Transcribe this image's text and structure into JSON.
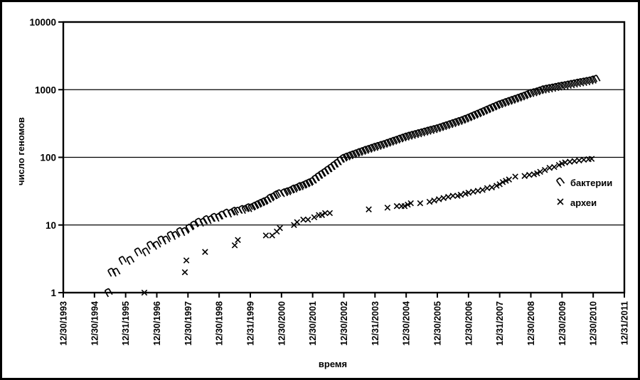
{
  "chart_data": {
    "type": "scatter",
    "title": "",
    "xlabel": "время",
    "ylabel": "число геномов",
    "y_scale": "log",
    "ylim": [
      1,
      10000
    ],
    "y_ticks": [
      1,
      10,
      100,
      1000,
      10000
    ],
    "grid": "horizontal",
    "legend_position": "inside-right",
    "x_tick_labels": [
      "12/30/1993",
      "12/30/1994",
      "12/31/1995",
      "12/30/1996",
      "12/30/1997",
      "12/30/1998",
      "12/31/1999",
      "12/30/2000",
      "12/30/2001",
      "12/30/2002",
      "12/31/2003",
      "12/30/2004",
      "12/30/2005",
      "12/30/2006",
      "12/31/2007",
      "12/30/2008",
      "12/30/2009",
      "12/30/2010",
      "12/31/2011"
    ],
    "series": [
      {
        "id": "bacteria",
        "name": "бактерии",
        "marker": "arch",
        "points": [
          [
            1995.45,
            1
          ],
          [
            1995.55,
            2
          ],
          [
            1995.7,
            2
          ],
          [
            1995.9,
            3
          ],
          [
            1996.15,
            3
          ],
          [
            1996.4,
            4
          ],
          [
            1996.65,
            4
          ],
          [
            1996.8,
            5
          ],
          [
            1997.0,
            5
          ],
          [
            1997.15,
            6
          ],
          [
            1997.3,
            6
          ],
          [
            1997.45,
            7
          ],
          [
            1997.6,
            7
          ],
          [
            1997.75,
            8
          ],
          [
            1997.9,
            8
          ],
          [
            1998.05,
            9
          ],
          [
            1998.2,
            10
          ],
          [
            1998.35,
            11
          ],
          [
            1998.5,
            11
          ],
          [
            1998.6,
            12
          ],
          [
            1998.75,
            12
          ],
          [
            1998.85,
            13
          ],
          [
            1999.0,
            13
          ],
          [
            1999.1,
            14
          ],
          [
            1999.25,
            15
          ],
          [
            1999.4,
            15
          ],
          [
            1999.5,
            16
          ],
          [
            1999.6,
            16
          ],
          [
            1999.75,
            17
          ],
          [
            1999.85,
            17
          ],
          [
            1999.95,
            18
          ],
          [
            2000.05,
            18
          ],
          [
            2000.15,
            19
          ],
          [
            2000.25,
            20
          ],
          [
            2000.35,
            21
          ],
          [
            2000.45,
            22
          ],
          [
            2000.55,
            23
          ],
          [
            2000.65,
            25
          ],
          [
            2000.75,
            26
          ],
          [
            2000.85,
            28
          ],
          [
            2000.93,
            29
          ],
          [
            2001.1,
            30
          ],
          [
            2001.2,
            31
          ],
          [
            2001.3,
            32
          ],
          [
            2001.4,
            34
          ],
          [
            2001.5,
            35
          ],
          [
            2001.6,
            37
          ],
          [
            2001.7,
            38
          ],
          [
            2001.8,
            40
          ],
          [
            2001.9,
            42
          ],
          [
            2002.0,
            44
          ],
          [
            2002.1,
            48
          ],
          [
            2002.2,
            52
          ],
          [
            2002.3,
            56
          ],
          [
            2002.4,
            60
          ],
          [
            2002.5,
            65
          ],
          [
            2002.6,
            70
          ],
          [
            2002.7,
            76
          ],
          [
            2002.8,
            82
          ],
          [
            2002.9,
            90
          ],
          [
            2003.0,
            97
          ],
          [
            2003.1,
            101
          ],
          [
            2003.2,
            105
          ],
          [
            2003.3,
            109
          ],
          [
            2003.4,
            113
          ],
          [
            2003.5,
            118
          ],
          [
            2003.6,
            122
          ],
          [
            2003.7,
            127
          ],
          [
            2003.8,
            131
          ],
          [
            2003.9,
            136
          ],
          [
            2004.0,
            141
          ],
          [
            2004.1,
            145
          ],
          [
            2004.2,
            150
          ],
          [
            2004.3,
            155
          ],
          [
            2004.4,
            161
          ],
          [
            2004.5,
            167
          ],
          [
            2004.6,
            173
          ],
          [
            2004.7,
            179
          ],
          [
            2004.8,
            186
          ],
          [
            2004.9,
            193
          ],
          [
            2005.0,
            200
          ],
          [
            2005.1,
            206
          ],
          [
            2005.2,
            212
          ],
          [
            2005.3,
            218
          ],
          [
            2005.4,
            224
          ],
          [
            2005.5,
            230
          ],
          [
            2005.6,
            237
          ],
          [
            2005.7,
            244
          ],
          [
            2005.8,
            251
          ],
          [
            2005.9,
            258
          ],
          [
            2006.0,
            265
          ],
          [
            2006.1,
            274
          ],
          [
            2006.2,
            284
          ],
          [
            2006.3,
            294
          ],
          [
            2006.4,
            304
          ],
          [
            2006.5,
            315
          ],
          [
            2006.6,
            326
          ],
          [
            2006.7,
            338
          ],
          [
            2006.8,
            350
          ],
          [
            2006.9,
            365
          ],
          [
            2007.0,
            380
          ],
          [
            2007.1,
            398
          ],
          [
            2007.2,
            416
          ],
          [
            2007.3,
            435
          ],
          [
            2007.4,
            455
          ],
          [
            2007.5,
            477
          ],
          [
            2007.6,
            499
          ],
          [
            2007.7,
            522
          ],
          [
            2007.8,
            547
          ],
          [
            2007.9,
            573
          ],
          [
            2008.0,
            600
          ],
          [
            2008.1,
            622
          ],
          [
            2008.2,
            646
          ],
          [
            2008.3,
            670
          ],
          [
            2008.4,
            695
          ],
          [
            2008.5,
            721
          ],
          [
            2008.6,
            748
          ],
          [
            2008.7,
            776
          ],
          [
            2008.8,
            805
          ],
          [
            2008.9,
            840
          ],
          [
            2009.0,
            880
          ],
          [
            2009.1,
            905
          ],
          [
            2009.2,
            930
          ],
          [
            2009.3,
            960
          ],
          [
            2009.4,
            1000
          ],
          [
            2009.5,
            1020
          ],
          [
            2009.6,
            1040
          ],
          [
            2009.7,
            1060
          ],
          [
            2009.8,
            1085
          ],
          [
            2009.9,
            1110
          ],
          [
            2010.0,
            1130
          ],
          [
            2010.1,
            1150
          ],
          [
            2010.2,
            1175
          ],
          [
            2010.3,
            1200
          ],
          [
            2010.4,
            1225
          ],
          [
            2010.5,
            1250
          ],
          [
            2010.6,
            1275
          ],
          [
            2010.7,
            1300
          ],
          [
            2010.8,
            1325
          ],
          [
            2010.9,
            1350
          ],
          [
            2011.0,
            1390
          ],
          [
            2011.1,
            1430
          ]
        ]
      },
      {
        "id": "archaea",
        "name": "археи",
        "marker": "cross",
        "points": [
          [
            1996.6,
            1
          ],
          [
            1997.9,
            2
          ],
          [
            1997.95,
            3
          ],
          [
            1998.55,
            4
          ],
          [
            1999.5,
            5
          ],
          [
            1999.6,
            6
          ],
          [
            2000.5,
            7
          ],
          [
            2000.7,
            7
          ],
          [
            2000.85,
            8
          ],
          [
            2000.95,
            9
          ],
          [
            2001.4,
            10
          ],
          [
            2001.5,
            11
          ],
          [
            2001.7,
            12
          ],
          [
            2001.85,
            12
          ],
          [
            2002.05,
            13
          ],
          [
            2002.2,
            14
          ],
          [
            2002.3,
            14
          ],
          [
            2002.4,
            15
          ],
          [
            2002.55,
            15
          ],
          [
            2003.8,
            17
          ],
          [
            2004.4,
            18
          ],
          [
            2004.7,
            19
          ],
          [
            2004.85,
            19
          ],
          [
            2004.95,
            19
          ],
          [
            2005.05,
            20
          ],
          [
            2005.15,
            21
          ],
          [
            2005.45,
            21
          ],
          [
            2005.75,
            22
          ],
          [
            2005.9,
            23
          ],
          [
            2006.05,
            24
          ],
          [
            2006.2,
            25
          ],
          [
            2006.35,
            26
          ],
          [
            2006.5,
            27
          ],
          [
            2006.65,
            27
          ],
          [
            2006.75,
            28
          ],
          [
            2006.9,
            29
          ],
          [
            2007.0,
            30
          ],
          [
            2007.15,
            31
          ],
          [
            2007.3,
            32
          ],
          [
            2007.45,
            33
          ],
          [
            2007.6,
            35
          ],
          [
            2007.75,
            36
          ],
          [
            2007.9,
            38
          ],
          [
            2008.0,
            40
          ],
          [
            2008.1,
            43
          ],
          [
            2008.2,
            45
          ],
          [
            2008.3,
            47
          ],
          [
            2008.5,
            52
          ],
          [
            2008.8,
            53
          ],
          [
            2008.95,
            55
          ],
          [
            2009.1,
            56
          ],
          [
            2009.2,
            58
          ],
          [
            2009.3,
            61
          ],
          [
            2009.45,
            65
          ],
          [
            2009.6,
            70
          ],
          [
            2009.75,
            72
          ],
          [
            2009.9,
            77
          ],
          [
            2010.0,
            81
          ],
          [
            2010.1,
            84
          ],
          [
            2010.25,
            86
          ],
          [
            2010.4,
            88
          ],
          [
            2010.55,
            90
          ],
          [
            2010.7,
            92
          ],
          [
            2010.85,
            94
          ],
          [
            2010.95,
            95
          ]
        ]
      }
    ]
  }
}
